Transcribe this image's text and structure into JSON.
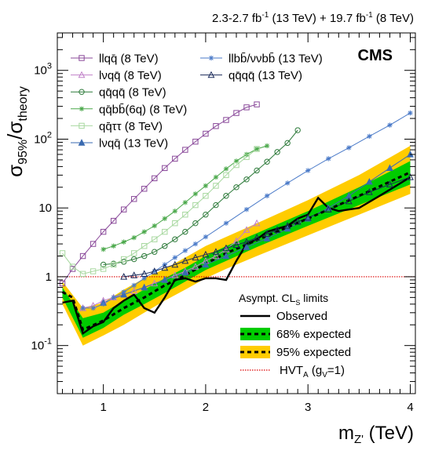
{
  "header": {
    "lumi": "2.3-2.7 fb",
    "lumi_exp1": "-1",
    "lumi_mid": " (13 TeV) + 19.7 fb",
    "lumi_exp2": "-1",
    "lumi_end": " (8 TeV)",
    "experiment": "CMS"
  },
  "axes": {
    "xlabel_main": "m",
    "xlabel_sub": "Z'",
    "xlabel_unit": " (TeV)",
    "ylabel_sigma1": "σ",
    "ylabel_sub1": "95%",
    "ylabel_slash": "/σ",
    "ylabel_sub2": "theory",
    "x_ticks": [
      "1",
      "2",
      "3",
      "4"
    ],
    "y_ticks": [
      {
        "base": "10",
        "exp": "-1",
        "value": 0.1
      },
      {
        "base": "1",
        "exp": "",
        "value": 1
      },
      {
        "base": "10",
        "exp": "",
        "value": 10
      },
      {
        "base": "10",
        "exp": "2",
        "value": 100
      },
      {
        "base": "10",
        "exp": "3",
        "value": 1000
      }
    ]
  },
  "chart_data": {
    "type": "line",
    "xlabel": "m_Z' (TeV)",
    "ylabel": "σ95%/σtheory",
    "xlim": [
      0.55,
      4.05
    ],
    "ylim": [
      0.02,
      3500
    ],
    "log_y": true,
    "grid": false,
    "band_title": {
      "text": "Asympt. CL",
      "sub": "S",
      "tail": " limits"
    },
    "band_legend": [
      {
        "label": "Observed",
        "style": "observed",
        "color": "#000000"
      },
      {
        "label": "68% expected",
        "style": "band68",
        "color": "#00cc00"
      },
      {
        "label": "95% expected",
        "style": "band95",
        "color": "#ffcc00"
      },
      {
        "label": "HVT",
        "sub": "A",
        "tail": " (g",
        "sub2": "V",
        "tail2": "=1)",
        "style": "hvt",
        "color": "#dd0000"
      }
    ],
    "band95": {
      "x": [
        0.6,
        0.8,
        1.0,
        1.2,
        1.4,
        1.6,
        1.8,
        2.0,
        2.2,
        2.5,
        3.0,
        3.5,
        4.0
      ],
      "lo": [
        0.4,
        0.1,
        0.14,
        0.2,
        0.3,
        0.45,
        0.65,
        0.95,
        1.3,
        2.0,
        4.0,
        8.0,
        16
      ],
      "hi": [
        0.85,
        0.35,
        0.42,
        0.65,
        0.95,
        1.3,
        1.9,
        2.8,
        3.8,
        6.0,
        13,
        30,
        80
      ]
    },
    "band68": {
      "x": [
        0.6,
        0.8,
        1.0,
        1.2,
        1.4,
        1.6,
        1.8,
        2.0,
        2.2,
        2.5,
        3.0,
        3.5,
        4.0
      ],
      "lo": [
        0.5,
        0.13,
        0.18,
        0.28,
        0.4,
        0.58,
        0.85,
        1.25,
        1.7,
        2.7,
        5.5,
        11,
        22
      ],
      "hi": [
        0.7,
        0.25,
        0.3,
        0.45,
        0.65,
        0.95,
        1.35,
        2.0,
        2.8,
        4.3,
        9.0,
        20,
        48
      ]
    },
    "expected": {
      "x": [
        0.6,
        0.7,
        0.8,
        1.0,
        1.2,
        1.4,
        1.6,
        1.8,
        2.0,
        2.2,
        2.5,
        3.0,
        3.5,
        4.0
      ],
      "y": [
        0.6,
        0.5,
        0.17,
        0.23,
        0.35,
        0.5,
        0.75,
        1.05,
        1.55,
        2.2,
        3.4,
        7,
        15,
        33
      ]
    },
    "observed": {
      "x": [
        0.6,
        0.7,
        0.8,
        0.9,
        1.0,
        1.1,
        1.2,
        1.3,
        1.4,
        1.5,
        1.6,
        1.7,
        1.8,
        1.9,
        2.0,
        2.1,
        2.2,
        2.3,
        2.4,
        2.5,
        2.6,
        2.7,
        2.8,
        2.9,
        3.0,
        3.1,
        3.2,
        3.3,
        3.5,
        3.7,
        4.0
      ],
      "y": [
        0.42,
        0.45,
        0.15,
        0.19,
        0.22,
        0.35,
        0.45,
        0.55,
        0.35,
        0.3,
        0.5,
        0.9,
        0.95,
        0.85,
        0.95,
        0.95,
        0.9,
        1.7,
        3.0,
        3.5,
        4.5,
        5.0,
        5.5,
        7.0,
        8.0,
        14,
        10,
        9,
        10,
        15,
        28
      ]
    },
    "hvt": {
      "y": 1.0,
      "color": "#dd0000"
    },
    "series": [
      {
        "name": "llqq̄ (8 TeV)",
        "color": "#8a4a9a",
        "marker": "square",
        "x": [
          0.6,
          0.7,
          0.8,
          0.9,
          1.0,
          1.1,
          1.2,
          1.3,
          1.4,
          1.5,
          1.6,
          1.7,
          1.8,
          1.9,
          2.0,
          2.1,
          2.2,
          2.3,
          2.4,
          2.5
        ],
        "y": [
          0.8,
          1.3,
          2.0,
          3.0,
          4.5,
          6.5,
          9.5,
          13.5,
          19,
          27,
          38,
          52,
          70,
          92,
          120,
          155,
          190,
          240,
          290,
          320
        ]
      },
      {
        "name": "lνqq̄ (8 TeV)",
        "color": "#c080c8",
        "marker": "triangle-open",
        "x": [
          0.8,
          0.9,
          1.0,
          1.1,
          1.2,
          1.3,
          1.4,
          1.5,
          1.6,
          1.7,
          1.8,
          1.9,
          2.0,
          2.1,
          2.2,
          2.3,
          2.4,
          2.5
        ],
        "y": [
          0.35,
          0.38,
          0.45,
          0.5,
          0.55,
          0.62,
          0.7,
          0.8,
          0.9,
          1.05,
          1.2,
          1.4,
          1.7,
          2.0,
          2.5,
          3.3,
          4.8,
          6.0
        ]
      },
      {
        "name": "qq̄qq̄ (8 TeV)",
        "color": "#2d7a3a",
        "marker": "circle-open",
        "x": [
          1.0,
          1.1,
          1.2,
          1.3,
          1.4,
          1.5,
          1.6,
          1.7,
          1.8,
          1.9,
          2.0,
          2.1,
          2.2,
          2.3,
          2.4,
          2.5,
          2.6,
          2.7,
          2.8,
          2.9
        ],
        "y": [
          1.5,
          1.55,
          1.65,
          1.8,
          2.0,
          2.3,
          2.8,
          3.5,
          4.5,
          6.0,
          8.0,
          11,
          15,
          20,
          26,
          35,
          47,
          65,
          88,
          135
        ]
      },
      {
        "name": "qq̄bb̄(6q) (8 TeV)",
        "color": "#4aa84a",
        "marker": "star",
        "x": [
          1.0,
          1.1,
          1.2,
          1.3,
          1.4,
          1.5,
          1.6,
          1.7,
          1.8,
          1.9,
          2.0,
          2.1,
          2.2,
          2.3,
          2.4,
          2.5,
          2.6
        ],
        "y": [
          2.5,
          2.8,
          3.2,
          3.7,
          4.5,
          5.5,
          7.0,
          9.0,
          12,
          16,
          21,
          28,
          37,
          48,
          60,
          72,
          80
        ]
      },
      {
        "name": "qq̄ττ (8 TeV)",
        "color": "#a8d8a0",
        "marker": "square-open",
        "x": [
          0.6,
          0.7,
          0.8,
          0.9,
          1.0,
          1.1,
          1.2,
          1.3,
          1.4,
          1.5,
          1.6,
          1.7,
          1.8,
          1.9,
          2.0,
          2.1,
          2.2,
          2.3,
          2.4,
          2.5
        ],
        "y": [
          2.2,
          1.4,
          1.1,
          1.2,
          1.3,
          1.5,
          1.8,
          2.2,
          2.8,
          3.5,
          4.5,
          6,
          8,
          11,
          15,
          21,
          30,
          42,
          55,
          72
        ]
      },
      {
        "name": "lνqq̄ (13 TeV)",
        "color": "#3a6ab0",
        "marker": "triangle-filled",
        "x": [
          1.0,
          1.2,
          1.4,
          1.6,
          1.8,
          2.0,
          2.2,
          2.4,
          2.6,
          2.8,
          3.0,
          3.2,
          3.4,
          3.6,
          3.8,
          4.0
        ],
        "y": [
          0.42,
          0.55,
          0.7,
          0.9,
          1.15,
          1.5,
          2.0,
          2.7,
          3.6,
          5,
          7,
          10,
          15,
          24,
          38,
          60
        ]
      },
      {
        "name": "llbb̄/ννbb̄ (13 TeV)",
        "color": "#4a7ac8",
        "marker": "star",
        "x": [
          0.8,
          0.9,
          1.0,
          1.1,
          1.2,
          1.3,
          1.4,
          1.5,
          1.6,
          1.7,
          1.8,
          1.9,
          2.0,
          2.2,
          2.4,
          2.6,
          2.8,
          3.0,
          3.2,
          3.4,
          3.6,
          3.8,
          4.0
        ],
        "y": [
          0.35,
          0.35,
          0.4,
          0.5,
          0.6,
          0.75,
          0.95,
          1.2,
          1.5,
          1.9,
          2.4,
          3.0,
          3.8,
          6,
          9.5,
          15,
          23,
          35,
          52,
          75,
          110,
          160,
          240
        ]
      },
      {
        "name": "qq̄qq̄ (13 TeV)",
        "color": "#1a2a5a",
        "marker": "triangle-open",
        "x": [
          1.2,
          1.3,
          1.4,
          1.5,
          1.6,
          1.7,
          1.8,
          1.9,
          2.0,
          2.1,
          2.2,
          2.3,
          2.4,
          2.5,
          2.6,
          2.7,
          2.8,
          2.9,
          3.0,
          3.2,
          3.4,
          3.6,
          3.8,
          4.0
        ],
        "y": [
          1.0,
          1.05,
          1.1,
          1.2,
          1.35,
          1.5,
          1.7,
          1.9,
          2.1,
          2.3,
          2.6,
          2.9,
          3.2,
          3.7,
          4.2,
          4.8,
          5.5,
          6.3,
          7.2,
          9.5,
          12.5,
          17,
          22,
          28
        ]
      }
    ]
  }
}
